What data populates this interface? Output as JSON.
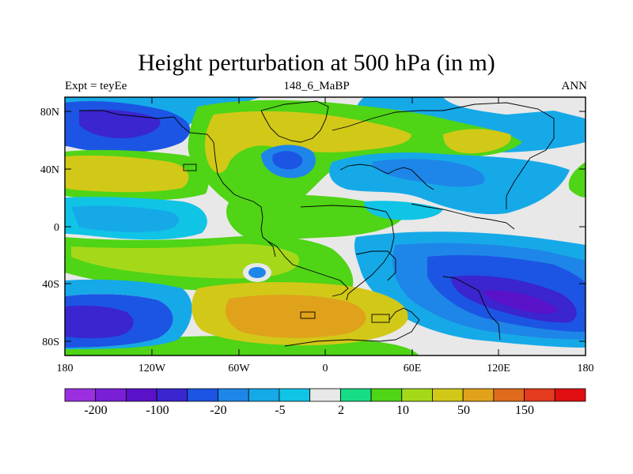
{
  "header": {
    "title": "Height perturbation at 500 hPa (in m)",
    "left_label": "Expt = teyEe",
    "center_label": "148_6_MaBP",
    "right_label": "ANN"
  },
  "axes": {
    "lat_ticks": [
      "80N",
      "40N",
      "0",
      "40S",
      "80S"
    ],
    "lon_ticks": [
      "180",
      "120W",
      "60W",
      "0",
      "60E",
      "120E",
      "180"
    ]
  },
  "colorbar": {
    "colors": [
      "#9b2fe0",
      "#7a1fd6",
      "#5a12c8",
      "#3a25cf",
      "#1c55e3",
      "#1e86e8",
      "#16a9e8",
      "#10c4e6",
      "#e8e8e8",
      "#16dc86",
      "#4fd416",
      "#a6d81a",
      "#d2c818",
      "#e0a21a",
      "#e06a1c",
      "#e43a1e",
      "#e00f12"
    ],
    "labels": [
      "-200",
      "-100",
      "-20",
      "-5",
      "2",
      "10",
      "50",
      "150"
    ]
  }
}
